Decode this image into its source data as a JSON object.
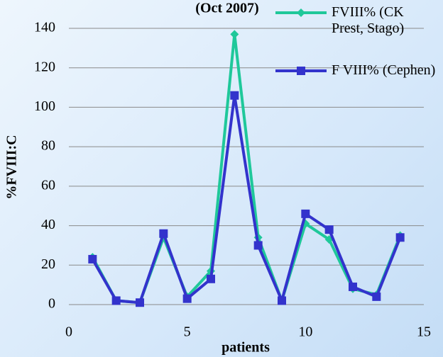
{
  "chart_data": {
    "type": "line",
    "title": "(Oct 2007)",
    "x_label": "patients",
    "y_label": "%FVIII:C",
    "x": [
      1,
      2,
      3,
      4,
      5,
      6,
      7,
      8,
      9,
      10,
      11,
      12,
      13,
      14
    ],
    "series": [
      {
        "name": "FVIII% (CK Prest, Stago)",
        "color": "#1fc89a",
        "marker": "diamond",
        "values": [
          24,
          2,
          1,
          34,
          4,
          17,
          137,
          34,
          2,
          41,
          33,
          8,
          5,
          35
        ]
      },
      {
        "name": "F VIII% (Cephen)",
        "color": "#3333cc",
        "marker": "square",
        "values": [
          23,
          2,
          1,
          36,
          3,
          13,
          106,
          30,
          2,
          46,
          38,
          9,
          4,
          34
        ]
      }
    ],
    "xlim": [
      0,
      15
    ],
    "xticks": [
      0,
      5,
      10,
      15
    ],
    "ylim": [
      0,
      140
    ],
    "yticks": [
      0,
      20,
      40,
      60,
      80,
      100,
      120,
      140
    ],
    "grid": true,
    "legend": "top-right"
  }
}
